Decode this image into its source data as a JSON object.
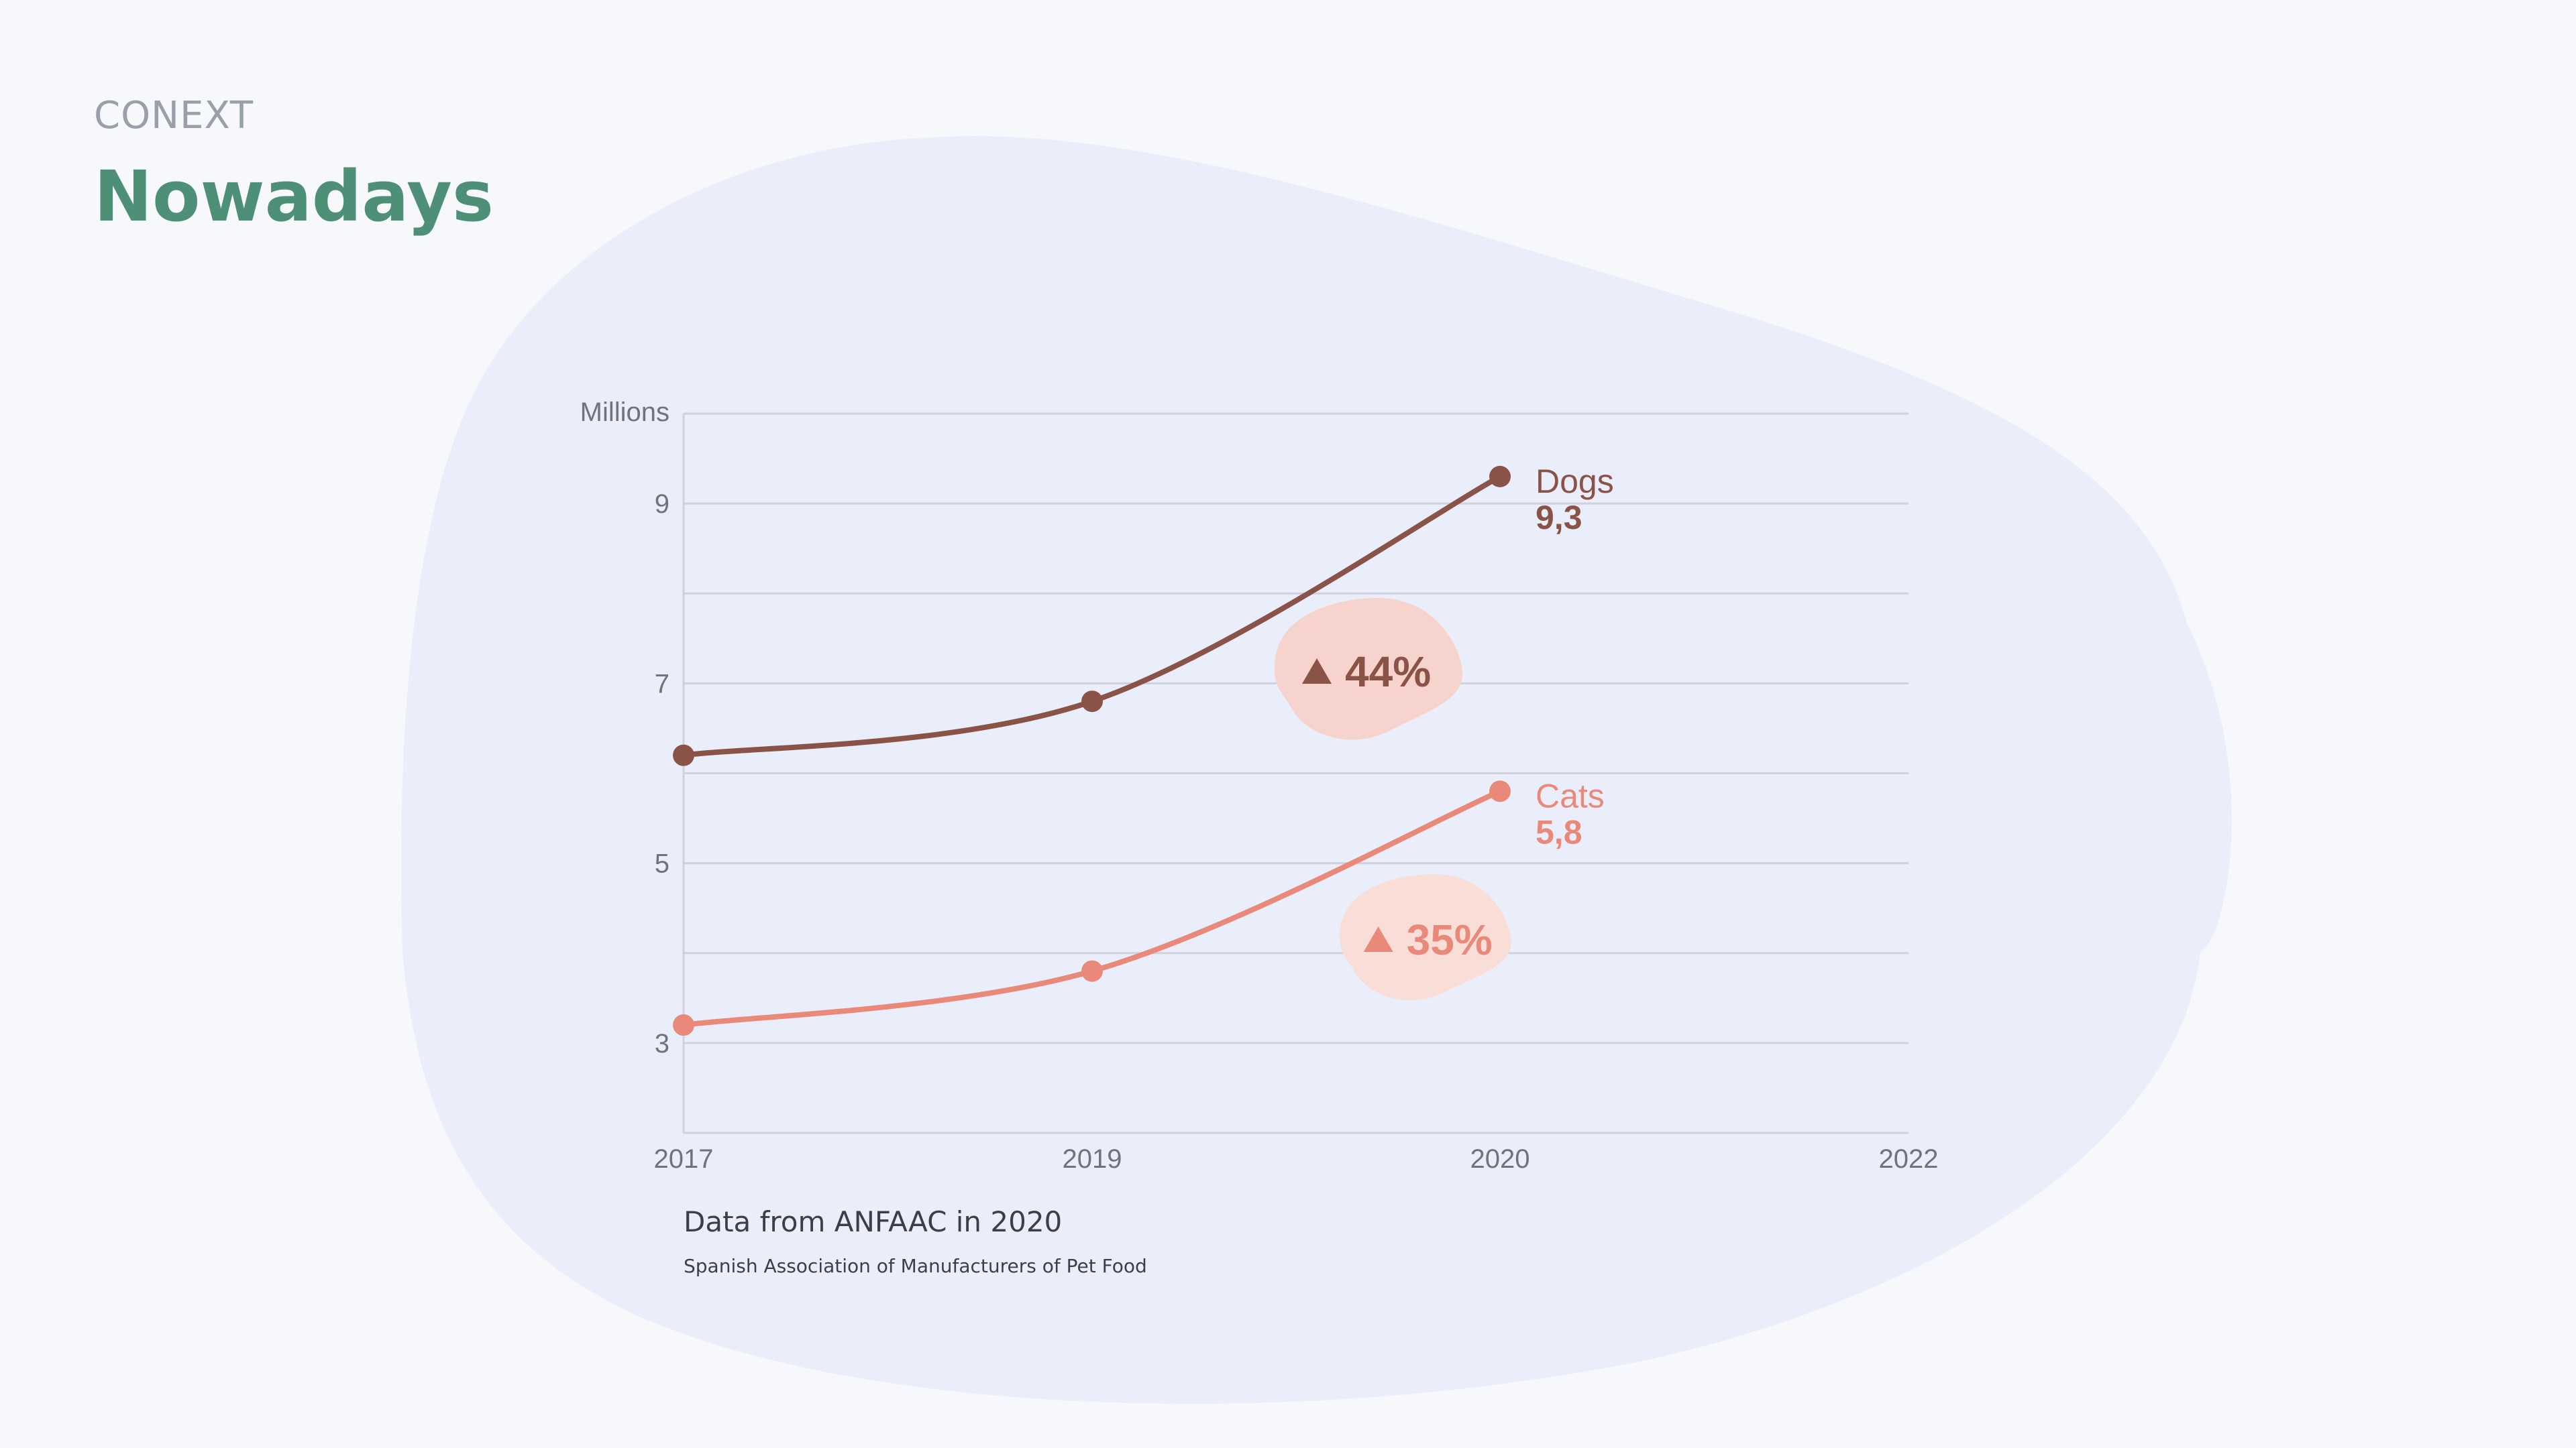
{
  "header": {
    "eyebrow": "CONEXT",
    "title": "Nowadays"
  },
  "colors": {
    "background": "#f7f8fb",
    "blob": "#eaeefa",
    "grid": "#cfd1dc",
    "axis_text": "#6f7380",
    "dogs": "#8a5348",
    "cats": "#e9897a",
    "dogs_badge": "#f7d3cd",
    "cats_badge": "#f9ded8",
    "title": "#4e8f78"
  },
  "chart_data": {
    "type": "line",
    "ylabel": "Millions",
    "xlabel": "",
    "x_ticks": [
      "2017",
      "2019",
      "2020",
      "2022"
    ],
    "y_ticks": [
      "3",
      "5",
      "7",
      "9"
    ],
    "ylim": [
      2,
      10
    ],
    "grid": true,
    "series": [
      {
        "name": "Dogs",
        "x": [
          "2017",
          "2019",
          "2020"
        ],
        "values": [
          6.2,
          6.8,
          9.3
        ],
        "end_label": "9,3",
        "change": "44%",
        "color": "#8a5348"
      },
      {
        "name": "Cats",
        "x": [
          "2017",
          "2019",
          "2020"
        ],
        "values": [
          3.2,
          3.8,
          5.8
        ],
        "end_label": "5,8",
        "change": "35%",
        "color": "#e9897a"
      }
    ]
  },
  "source": {
    "title": "Data from ANFAAC in 2020",
    "subtitle": "Spanish Association of Manufacturers of Pet Food"
  }
}
